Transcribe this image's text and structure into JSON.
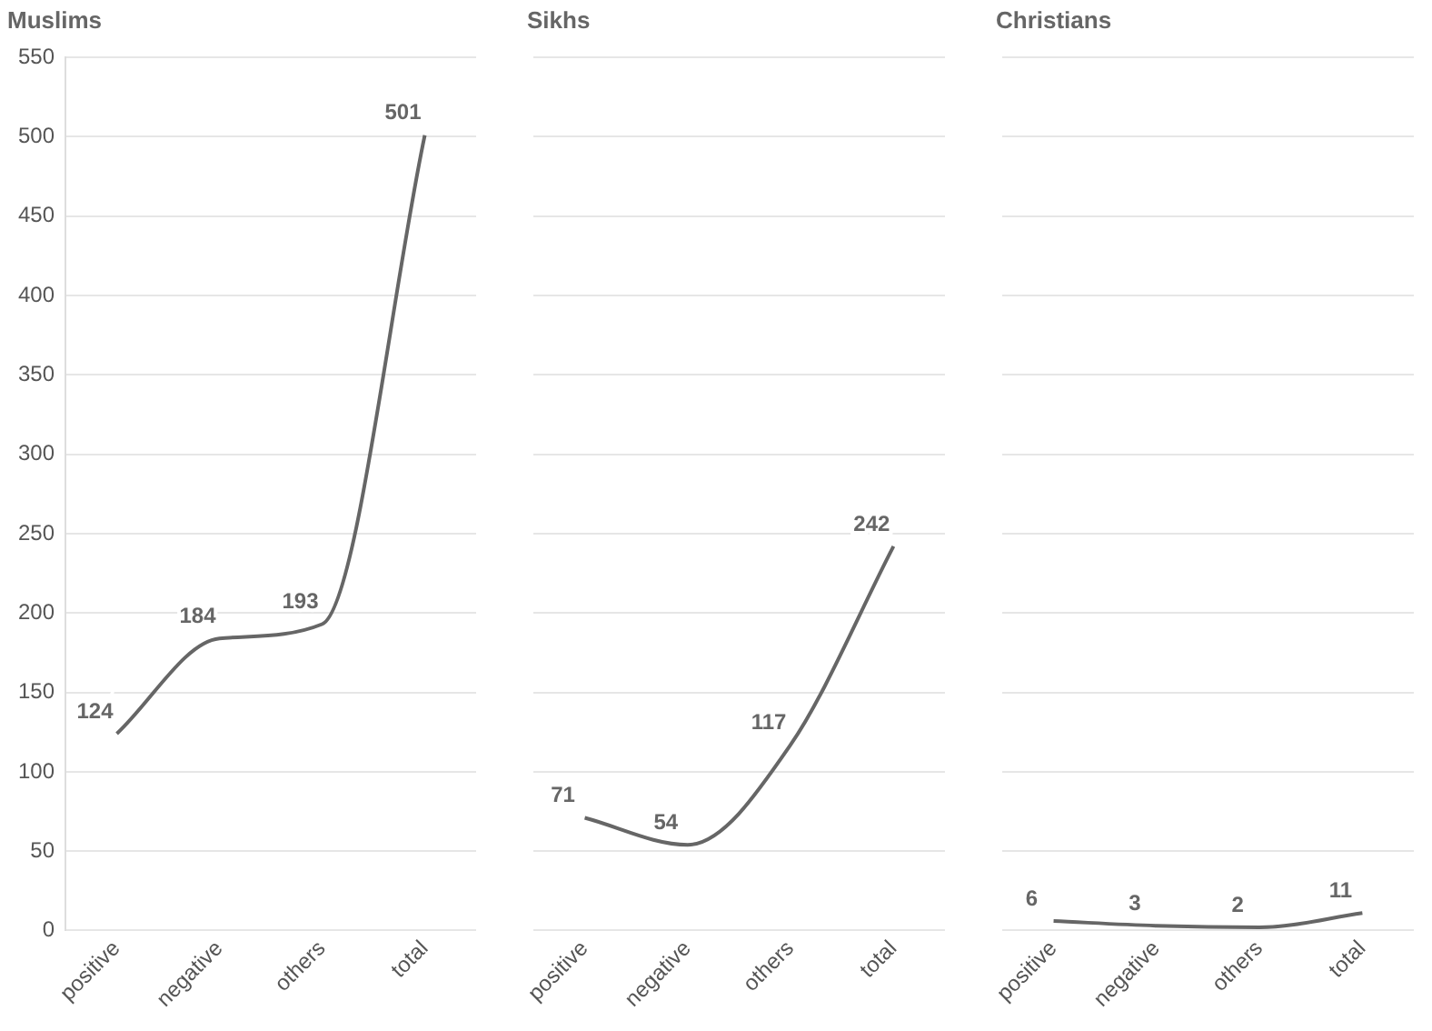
{
  "chart_data": [
    {
      "type": "line",
      "title": "Muslims",
      "categories": [
        "positive",
        "negative",
        "others",
        "total"
      ],
      "values": [
        124,
        184,
        193,
        501
      ],
      "color": "#666666",
      "ylim": [
        0,
        550
      ],
      "yticks": [
        0,
        50,
        100,
        150,
        200,
        250,
        300,
        350,
        400,
        450,
        500,
        550
      ],
      "grid": "y",
      "data_labels": true
    },
    {
      "type": "line",
      "title": "Sikhs",
      "categories": [
        "positive",
        "negative",
        "others",
        "total"
      ],
      "values": [
        71,
        54,
        117,
        242
      ],
      "color": "#666666",
      "ylim": [
        0,
        550
      ],
      "yticks": [
        0,
        50,
        100,
        150,
        200,
        250,
        300,
        350,
        400,
        450,
        500,
        550
      ],
      "grid": "y",
      "data_labels": true,
      "tick_labels": "x"
    },
    {
      "type": "line",
      "title": "Christians",
      "categories": [
        "positive",
        "negative",
        "others",
        "total"
      ],
      "values": [
        6,
        3,
        2,
        11
      ],
      "color": "#666666",
      "ylim": [
        0,
        550
      ],
      "yticks": [
        0,
        50,
        100,
        150,
        200,
        250,
        300,
        350,
        400,
        450,
        500,
        550
      ],
      "grid": "y",
      "data_labels": true,
      "tick_labels": "x"
    }
  ]
}
